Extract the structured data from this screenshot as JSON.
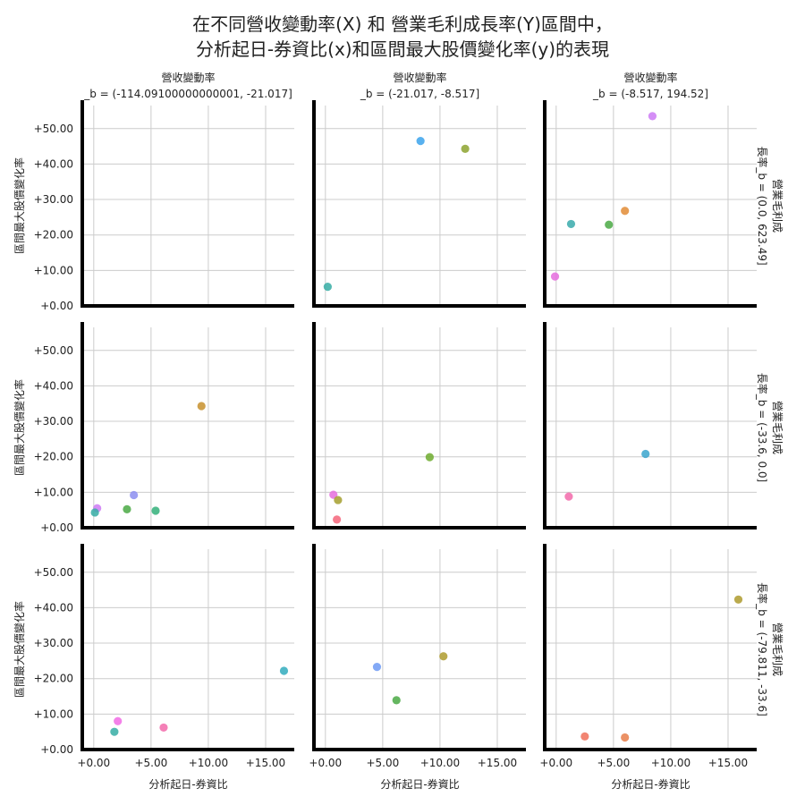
{
  "figure": {
    "title_lines": [
      "在不同營收變動率(X) 和 營業毛利成長率(Y)區間中，",
      "分析起日-券資比(x)和區間最大股價變化率(y)的表現"
    ]
  },
  "chart_data": {
    "type": "scatter",
    "xlabel": "分析起日-券資比",
    "ylabel": "區間最大股價變化率",
    "xlim": [
      -1.0,
      17.5
    ],
    "ylim": [
      0.0,
      56.5
    ],
    "x_ticks": [
      0,
      5,
      10,
      15
    ],
    "x_tick_labels": [
      "+0.00",
      "+5.00",
      "+10.00",
      "+15.00"
    ],
    "y_ticks": [
      0,
      10,
      20,
      30,
      40,
      50
    ],
    "y_tick_labels": [
      "+0.00",
      "+10.00",
      "+20.00",
      "+30.00",
      "+40.00",
      "+50.00"
    ],
    "grid": true,
    "columns": [
      {
        "title_lines": [
          "營收變動率",
          "_b = (-114.09100000000001, -21.017]"
        ]
      },
      {
        "title_lines": [
          "營收變動率",
          "_b = (-21.017, -8.517]"
        ]
      },
      {
        "title_lines": [
          "營收變動率",
          "_b = (-8.517, 194.52]"
        ]
      }
    ],
    "rows": [
      {
        "label_lines": [
          "營業毛利成",
          "長率_b = (0.0, 623.49]"
        ]
      },
      {
        "label_lines": [
          "營業毛利成",
          "長率_b = (-33.6, 0.0]"
        ]
      },
      {
        "label_lines": [
          "營業毛利成",
          "長率_b = (-79.811, -33.6]"
        ]
      }
    ],
    "panels": [
      [
        {
          "points": []
        },
        {
          "points": [
            {
              "x": 8.3,
              "y": 46.5,
              "color": "#3ba3ec"
            },
            {
              "x": 12.2,
              "y": 44.3,
              "color": "#8da32f"
            },
            {
              "x": 0.2,
              "y": 5.4,
              "color": "#36ada4"
            }
          ]
        },
        {
          "points": [
            {
              "x": 8.4,
              "y": 53.5,
              "color": "#cc7af4"
            },
            {
              "x": 6.0,
              "y": 26.8,
              "color": "#e28c36"
            },
            {
              "x": 1.3,
              "y": 23.1,
              "color": "#38aaac"
            },
            {
              "x": 4.6,
              "y": 22.9,
              "color": "#4aa944"
            },
            {
              "x": -0.1,
              "y": 8.3,
              "color": "#e56dde"
            }
          ]
        }
      ],
      [
        {
          "points": [
            {
              "x": 9.4,
              "y": 34.3,
              "color": "#c7902d"
            },
            {
              "x": 3.5,
              "y": 9.2,
              "color": "#8c8ef0"
            },
            {
              "x": 2.9,
              "y": 5.2,
              "color": "#4aa944"
            },
            {
              "x": 5.4,
              "y": 4.8,
              "color": "#33b07a"
            },
            {
              "x": 0.3,
              "y": 5.5,
              "color": "#cc7af4"
            },
            {
              "x": 0.1,
              "y": 4.3,
              "color": "#36ada4"
            }
          ]
        },
        {
          "points": [
            {
              "x": 9.1,
              "y": 19.9,
              "color": "#6fab2f"
            },
            {
              "x": 0.7,
              "y": 9.3,
              "color": "#e56dde"
            },
            {
              "x": 1.1,
              "y": 7.8,
              "color": "#a49f2e"
            },
            {
              "x": 1.0,
              "y": 2.3,
              "color": "#f4657a"
            }
          ]
        },
        {
          "points": [
            {
              "x": 7.8,
              "y": 20.8,
              "color": "#3aa4cc"
            },
            {
              "x": 1.1,
              "y": 8.8,
              "color": "#f26aaa"
            }
          ]
        }
      ],
      [
        {
          "points": [
            {
              "x": 16.6,
              "y": 22.2,
              "color": "#31abbd"
            },
            {
              "x": 2.1,
              "y": 8.0,
              "color": "#f16be5"
            },
            {
              "x": 6.1,
              "y": 6.2,
              "color": "#f26aaa"
            },
            {
              "x": 1.8,
              "y": 5.0,
              "color": "#36ada4"
            }
          ]
        },
        {
          "points": [
            {
              "x": 10.3,
              "y": 26.3,
              "color": "#ae9b2e"
            },
            {
              "x": 4.5,
              "y": 23.3,
              "color": "#6d9af5"
            },
            {
              "x": 6.2,
              "y": 13.9,
              "color": "#4aa944"
            }
          ]
        },
        {
          "points": [
            {
              "x": 15.9,
              "y": 42.3,
              "color": "#ae9b2e"
            },
            {
              "x": 2.5,
              "y": 3.7,
              "color": "#f0705a"
            },
            {
              "x": 6.0,
              "y": 3.4,
              "color": "#e77e4a"
            }
          ]
        }
      ]
    ]
  }
}
